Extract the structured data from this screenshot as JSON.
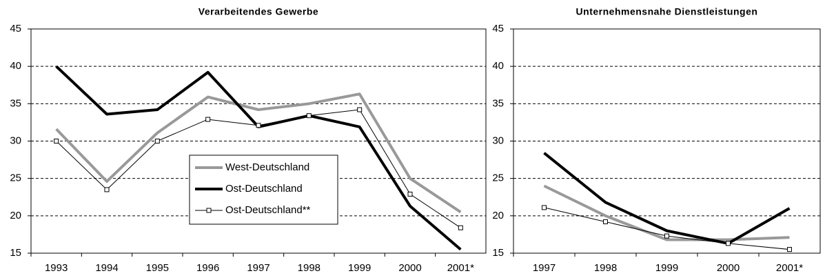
{
  "chart_data": [
    {
      "type": "line",
      "title": "Verarbeitendes Gewerbe",
      "categories": [
        "1993",
        "1994",
        "1995",
        "1996",
        "1997",
        "1998",
        "1999",
        "2000",
        "2001*"
      ],
      "ylim": [
        15,
        45
      ],
      "yticks": [
        15,
        20,
        25,
        30,
        35,
        40,
        45
      ],
      "grid": true,
      "legend": true,
      "series": [
        {
          "name": "West-Deutschland",
          "color": "#999999",
          "values": [
            31.6,
            24.6,
            31.1,
            35.9,
            34.2,
            35.0,
            36.3,
            25.0,
            20.5
          ]
        },
        {
          "name": "Ost-Deutschland",
          "color": "#000000",
          "values": [
            40.0,
            33.6,
            34.2,
            39.2,
            31.9,
            33.4,
            31.9,
            21.3,
            15.5
          ]
        },
        {
          "name": "Ost-Deutschland**",
          "color": "#000000",
          "marker": "square",
          "values": [
            30.0,
            23.5,
            30.0,
            32.9,
            32.1,
            33.4,
            34.2,
            22.9,
            18.4
          ]
        }
      ]
    },
    {
      "type": "line",
      "title": "Unternehmensnahe Dienstleistungen",
      "categories": [
        "1997",
        "1998",
        "1999",
        "2000",
        "2001*"
      ],
      "ylim": [
        15,
        45
      ],
      "yticks": [
        15,
        20,
        25,
        30,
        35,
        40,
        45
      ],
      "grid": true,
      "legend": false,
      "series": [
        {
          "color": "#999999",
          "values": [
            24.0,
            20.0,
            16.8,
            16.8,
            17.1
          ]
        },
        {
          "color": "#000000",
          "values": [
            28.4,
            21.8,
            18.0,
            16.3,
            21.0
          ]
        },
        {
          "color": "#000000",
          "marker": "square",
          "values": [
            21.1,
            19.2,
            17.3,
            16.3,
            15.5
          ]
        }
      ]
    }
  ]
}
